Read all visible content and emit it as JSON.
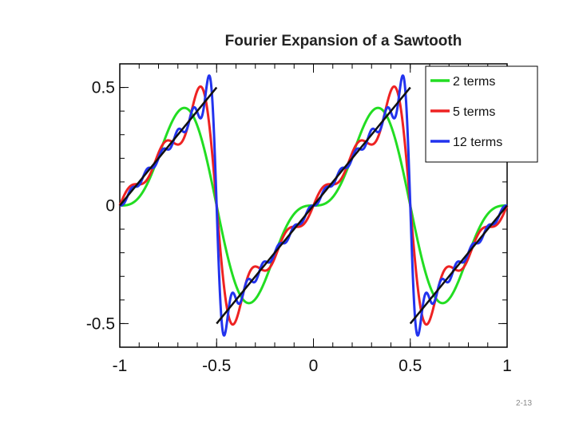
{
  "chart_data": {
    "type": "line",
    "title": "Fourier Expansion of a Sawtooth",
    "xlabel": "",
    "ylabel": "",
    "xlim": [
      -1,
      1
    ],
    "ylim": [
      -0.6,
      0.6
    ],
    "x_ticks": [
      -1,
      -0.5,
      0,
      0.5,
      1
    ],
    "x_tick_labels": [
      "-1",
      "-0.5",
      "0",
      "0.5",
      "1"
    ],
    "y_ticks": [
      -0.5,
      0,
      0.5
    ],
    "y_tick_labels": [
      "-0.5",
      "0",
      "0.5"
    ],
    "grid": false,
    "legend_position": "top-right",
    "function": "sawtooth with period 1: f(x) = x for -0.5 < x < 0.5, repeating",
    "series": [
      {
        "name": "2 terms",
        "terms": 2,
        "color": "#22dd22"
      },
      {
        "name": "5 terms",
        "terms": 5,
        "color": "#ee2222"
      },
      {
        "name": "12 terms",
        "terms": 12,
        "color": "#2233ee"
      },
      {
        "name": "",
        "terms": 0,
        "color": "#111111",
        "segments": [
          [
            -1,
            0,
            -0.5,
            0.5
          ],
          [
            -0.5,
            -0.5,
            0.5,
            0.5
          ],
          [
            0.5,
            -0.5,
            1,
            0
          ]
        ]
      }
    ]
  },
  "page_number": "2-13"
}
